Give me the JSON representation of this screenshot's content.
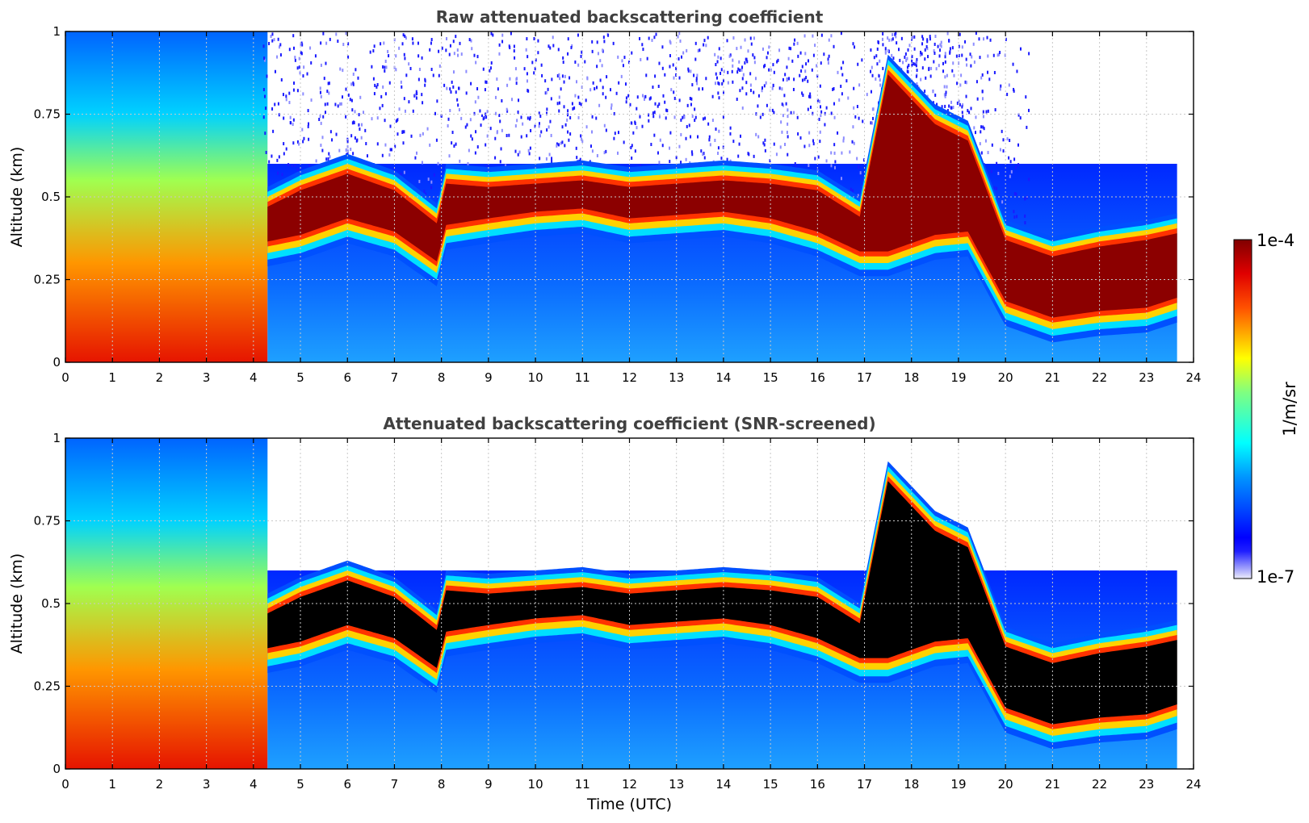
{
  "chart_data": [
    {
      "type": "heatmap",
      "title": "Raw attenuated backscattering coefficient",
      "xlabel": "",
      "ylabel": "Altitude (km)",
      "xlim": [
        0,
        24
      ],
      "ylim": [
        0,
        1
      ],
      "x_ticks": [
        "0",
        "1",
        "2",
        "3",
        "4",
        "5",
        "6",
        "7",
        "8",
        "9",
        "10",
        "11",
        "12",
        "13",
        "14",
        "15",
        "16",
        "17",
        "18",
        "19",
        "20",
        "21",
        "22",
        "23",
        "24"
      ],
      "y_ticks": [
        "0",
        "0.25",
        "0.5",
        "0.75",
        "1"
      ],
      "grid": true,
      "data_end_time": 23.65,
      "cloud_layer": {
        "description_units": "time UTC (h), altitude (km)",
        "time": [
          4.3,
          5,
          6,
          7,
          7.9,
          8.1,
          9,
          10,
          11,
          12,
          13,
          14,
          15,
          16,
          16.9,
          17.5,
          18.5,
          19.2,
          20,
          21,
          22,
          23,
          23.65
        ],
        "base_km": [
          0.33,
          0.35,
          0.4,
          0.36,
          0.27,
          0.38,
          0.4,
          0.42,
          0.43,
          0.4,
          0.41,
          0.42,
          0.4,
          0.36,
          0.3,
          0.3,
          0.35,
          0.36,
          0.15,
          0.1,
          0.12,
          0.13,
          0.16
        ],
        "top_km": [
          0.5,
          0.55,
          0.6,
          0.55,
          0.45,
          0.57,
          0.56,
          0.57,
          0.58,
          0.56,
          0.57,
          0.58,
          0.57,
          0.55,
          0.47,
          0.9,
          0.75,
          0.7,
          0.4,
          0.35,
          0.38,
          0.4,
          0.42
        ]
      }
    },
    {
      "type": "heatmap",
      "title": "Attenuated backscattering coefficient (SNR-screened)",
      "xlabel": "Time (UTC)",
      "ylabel": "Altitude (km)",
      "xlim": [
        0,
        24
      ],
      "ylim": [
        0,
        1
      ],
      "x_ticks": [
        "0",
        "1",
        "2",
        "3",
        "4",
        "5",
        "6",
        "7",
        "8",
        "9",
        "10",
        "11",
        "12",
        "13",
        "14",
        "15",
        "16",
        "17",
        "18",
        "19",
        "20",
        "21",
        "22",
        "23",
        "24"
      ],
      "y_ticks": [
        "0",
        "0.25",
        "0.5",
        "0.75",
        "1"
      ],
      "grid": true,
      "data_end_time": 23.65,
      "saturated_color": "#000000"
    }
  ],
  "colorbar": {
    "label": "1/m/sr",
    "min_label": "1e-7",
    "max_label": "1e-4",
    "scale": "log",
    "range": [
      1e-07,
      0.0001
    ],
    "colormap": "jet",
    "colors": [
      "#ececfa",
      "#0000ff",
      "#00ffff",
      "#ffff00",
      "#ff0000",
      "#800000"
    ]
  }
}
